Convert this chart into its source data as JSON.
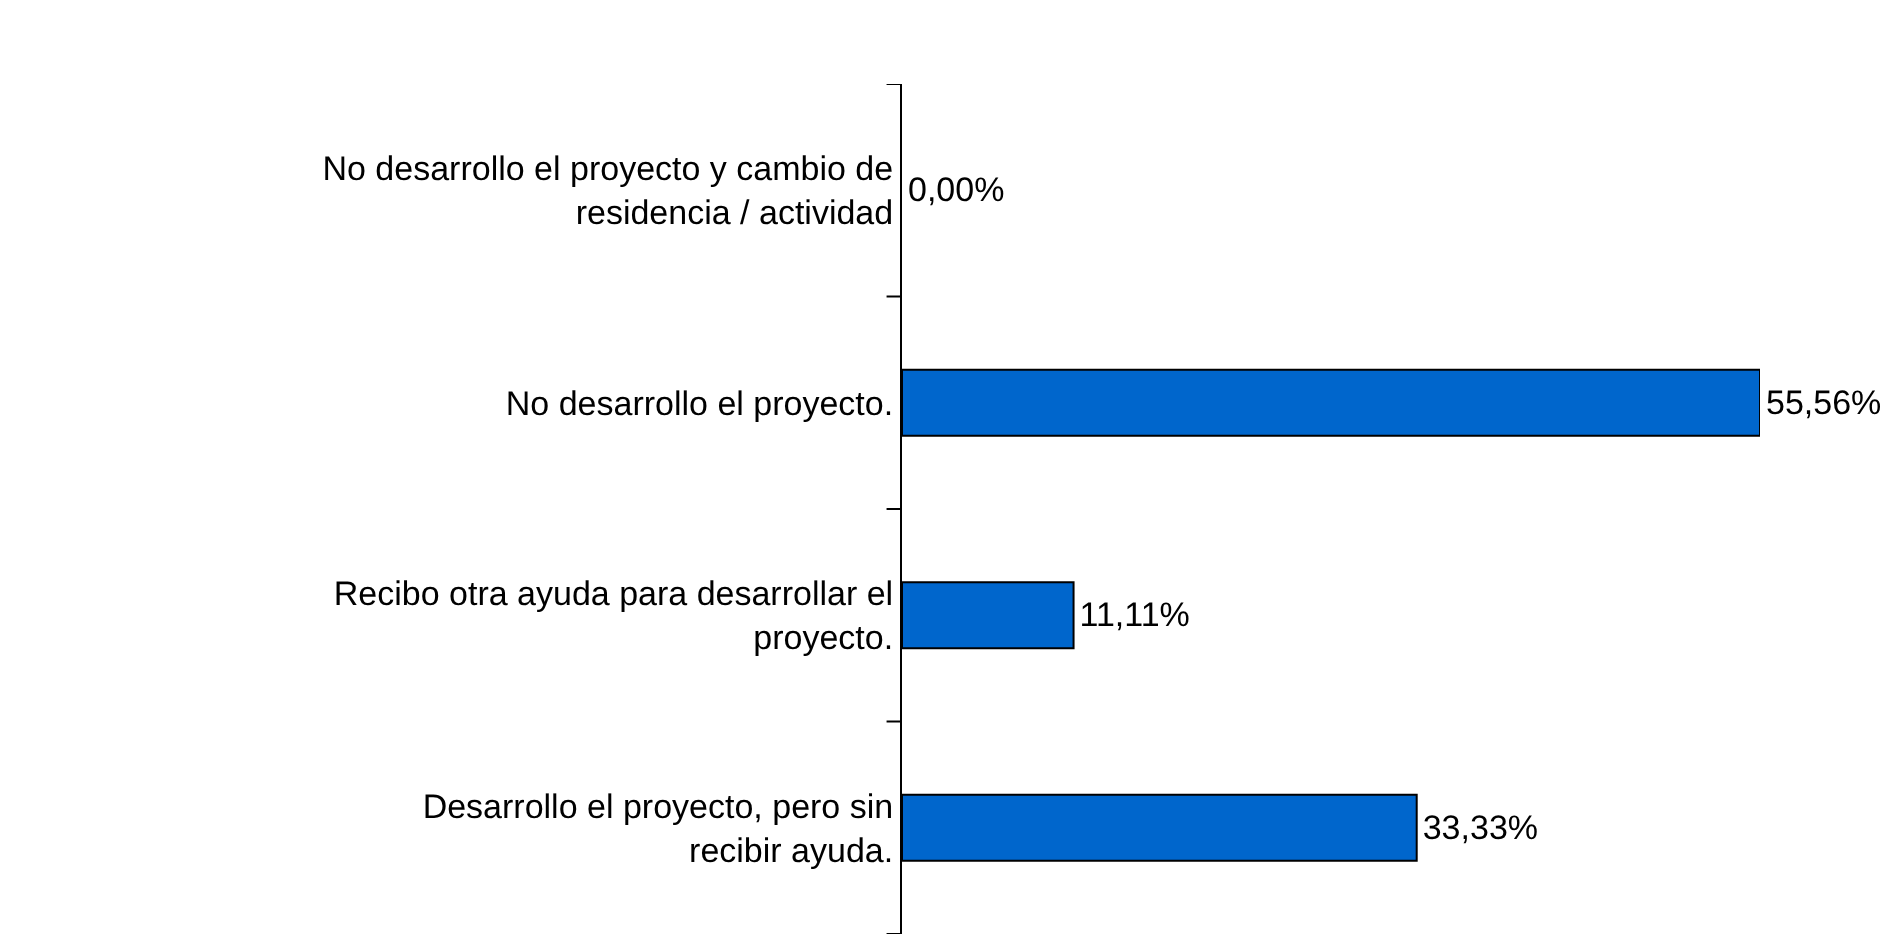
{
  "chart_data": {
    "type": "bar",
    "orientation": "horizontal",
    "categories": [
      "No desarrollo el proyecto y cambio de residencia / actividad",
      "No desarrollo el proyecto.",
      "Recibo otra ayuda para desarrollar el proyecto.",
      "Desarrollo el proyecto, pero sin recibir ayuda."
    ],
    "values": [
      0,
      55.56,
      11.11,
      33.33
    ],
    "value_labels": [
      "0,00%",
      "55,56%",
      "11,11%",
      "33,33%"
    ],
    "color": "#0066cc",
    "legend": false,
    "tick_labels": "y"
  }
}
